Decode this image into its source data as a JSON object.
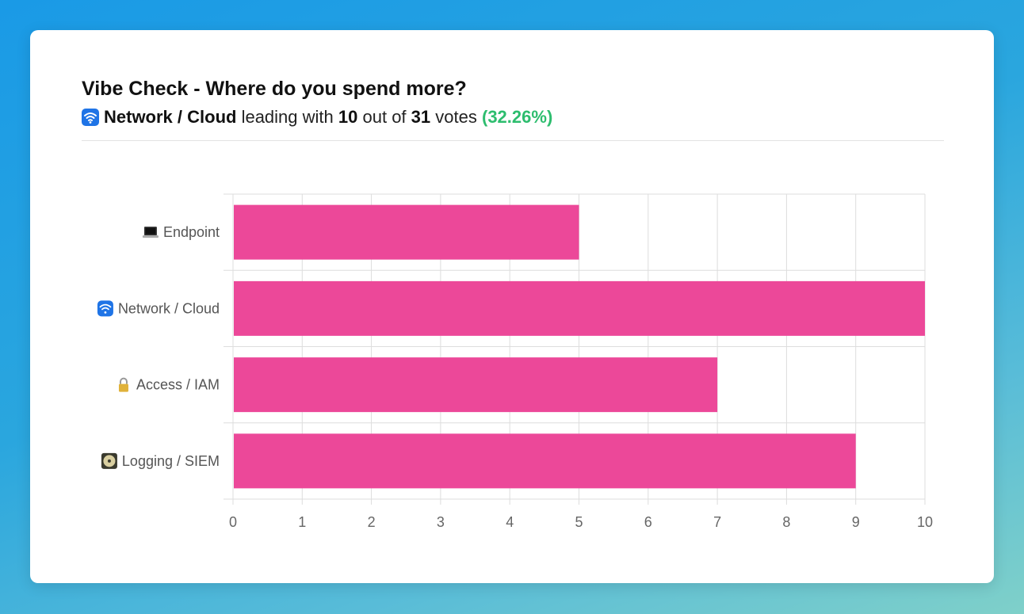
{
  "header": {
    "title": "Vibe Check - Where do you spend more?",
    "leader_name": "Network / Cloud",
    "leading_with": "leading with",
    "leader_votes": "10",
    "out_of": "out of",
    "total_votes": "31",
    "votes_word": "votes",
    "leader_percent": "(32.26%)"
  },
  "colors": {
    "bar": "#ec4899",
    "accent_green": "#2dbd6e",
    "grid": "#dddddd"
  },
  "chart_data": {
    "type": "bar",
    "orientation": "horizontal",
    "categories": [
      "Endpoint",
      "Network / Cloud",
      "Access / IAM",
      "Logging / SIEM"
    ],
    "category_icons": [
      "laptop-icon",
      "wifi-icon",
      "lock-icon",
      "disc-icon"
    ],
    "values": [
      5,
      10,
      7,
      9
    ],
    "xlim": [
      0,
      10
    ],
    "xticks": [
      0,
      1,
      2,
      3,
      4,
      5,
      6,
      7,
      8,
      9,
      10
    ],
    "grid": true,
    "legend": "none"
  }
}
